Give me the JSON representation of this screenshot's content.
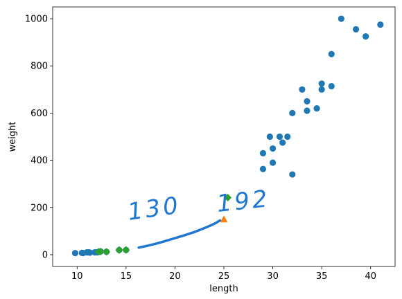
{
  "chart_data": {
    "type": "scatter",
    "title": "",
    "xlabel": "length",
    "ylabel": "weight",
    "xlim": [
      7.5,
      42.5
    ],
    "ylim": [
      -50,
      1050
    ],
    "xticks": [
      10,
      15,
      20,
      25,
      30,
      35,
      40
    ],
    "yticks": [
      0,
      200,
      400,
      600,
      800,
      1000
    ],
    "grid": false,
    "series": [
      {
        "color": "#1f77b4",
        "marker": "circle",
        "points": [
          [
            9.8,
            6.7
          ],
          [
            10.5,
            7.5
          ],
          [
            10.6,
            7.0
          ],
          [
            11.0,
            9.7
          ],
          [
            11.2,
            9.8
          ],
          [
            11.3,
            8.7
          ],
          [
            11.8,
            10.0
          ],
          [
            12.0,
            9.9
          ],
          [
            12.2,
            12.2
          ],
          [
            12.4,
            13.4
          ],
          [
            13.0,
            12.2
          ],
          [
            14.3,
            19.7
          ],
          [
            15.0,
            19.9
          ],
          [
            29.0,
            430
          ],
          [
            29.0,
            363
          ],
          [
            29.7,
            500
          ],
          [
            30.0,
            450
          ],
          [
            30.0,
            390
          ],
          [
            30.7,
            500
          ],
          [
            31.0,
            475
          ],
          [
            31.5,
            500
          ],
          [
            32.0,
            340
          ],
          [
            32.0,
            600
          ],
          [
            33.0,
            700
          ],
          [
            33.5,
            610
          ],
          [
            33.5,
            650
          ],
          [
            34.5,
            620
          ],
          [
            35.0,
            725
          ],
          [
            35.0,
            700
          ],
          [
            36.0,
            714
          ],
          [
            36.0,
            850
          ],
          [
            37.0,
            1000
          ],
          [
            38.5,
            955
          ],
          [
            39.5,
            925
          ],
          [
            41.0,
            975
          ]
        ]
      },
      {
        "color": "#ff7f0e",
        "marker": "triangle",
        "points": [
          [
            25.0,
            150
          ]
        ]
      },
      {
        "color": "#2ca02c",
        "marker": "diamond",
        "points": [
          [
            12.2,
            12.2
          ],
          [
            12.4,
            13.4
          ],
          [
            13.0,
            12.2
          ],
          [
            14.3,
            19.7
          ],
          [
            15.0,
            19.9
          ],
          [
            25.4,
            242
          ]
        ]
      }
    ],
    "annotations": [
      {
        "text": "130",
        "kind": "handwritten"
      },
      {
        "text": "192",
        "kind": "handwritten"
      }
    ],
    "curve": {
      "color": "#1f77d0",
      "points": [
        [
          16.3,
          30
        ],
        [
          18.0,
          45
        ],
        [
          20.0,
          70
        ],
        [
          22.0,
          95
        ],
        [
          24.0,
          130
        ],
        [
          24.6,
          145
        ]
      ]
    }
  }
}
